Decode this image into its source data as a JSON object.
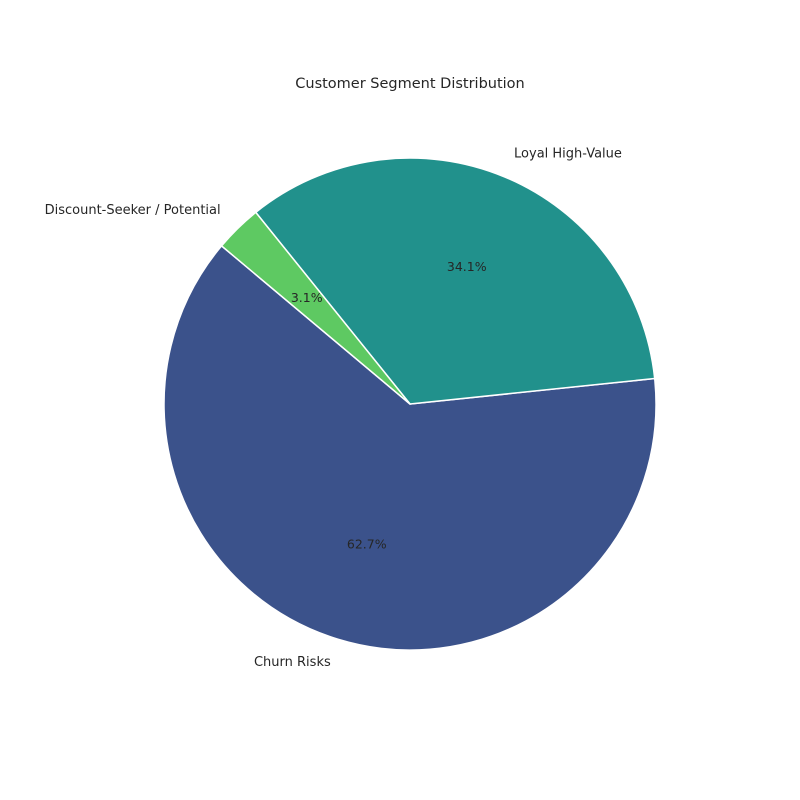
{
  "chart_data": {
    "type": "pie",
    "title": "Customer Segment Distribution",
    "slices": [
      {
        "label": "Churn Risks",
        "value": 62.7,
        "pct_label": "62.7%",
        "color": "#3b528b"
      },
      {
        "label": "Loyal High-Value",
        "value": 34.1,
        "pct_label": "34.1%",
        "color": "#21918c"
      },
      {
        "label": "Discount-Seeker / Potential",
        "value": 3.1,
        "pct_label": "3.1%",
        "color": "#5ec962"
      }
    ],
    "start_angle_deg": 140,
    "direction": "counterclockwise",
    "edge_color": "#ffffff",
    "legend": "none"
  }
}
